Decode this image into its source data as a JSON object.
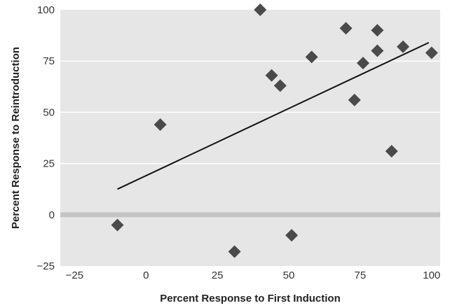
{
  "chart_data": {
    "type": "scatter",
    "title": "",
    "xlabel": "Percent Response to First Induction",
    "ylabel": "Percent Response to Reintroduction",
    "xlim": [
      -30,
      103
    ],
    "ylim": [
      -25,
      100
    ],
    "xticks": [
      -25,
      0,
      25,
      50,
      75,
      100
    ],
    "yticks": [
      -25,
      0,
      25,
      50,
      75,
      100
    ],
    "xtick_labels": [
      "−25",
      "0",
      "25",
      "50",
      "75",
      "100"
    ],
    "ytick_labels": [
      "−25",
      "0",
      "25",
      "50",
      "75",
      "100"
    ],
    "grid": true,
    "legend": "none",
    "zero_line": 0,
    "colors": {
      "plot_background": "#e6e6e6",
      "grid": "#ffffff",
      "zero_line": "#c4c4c4",
      "marker": "#4a4a4a",
      "trendline": "#111111"
    },
    "marker_shape": "diamond",
    "points": [
      {
        "x": -10,
        "y": -5
      },
      {
        "x": 5,
        "y": 44
      },
      {
        "x": 31,
        "y": -18
      },
      {
        "x": 40,
        "y": 100
      },
      {
        "x": 44,
        "y": 68
      },
      {
        "x": 47,
        "y": 63
      },
      {
        "x": 51,
        "y": -10
      },
      {
        "x": 58,
        "y": 77
      },
      {
        "x": 70,
        "y": 91
      },
      {
        "x": 73,
        "y": 56
      },
      {
        "x": 76,
        "y": 74
      },
      {
        "x": 81,
        "y": 90
      },
      {
        "x": 81,
        "y": 80
      },
      {
        "x": 86,
        "y": 31
      },
      {
        "x": 90,
        "y": 82
      },
      {
        "x": 100,
        "y": 79
      }
    ],
    "trendline": {
      "x": [
        -10,
        99
      ],
      "y": [
        12.5,
        84
      ]
    }
  }
}
